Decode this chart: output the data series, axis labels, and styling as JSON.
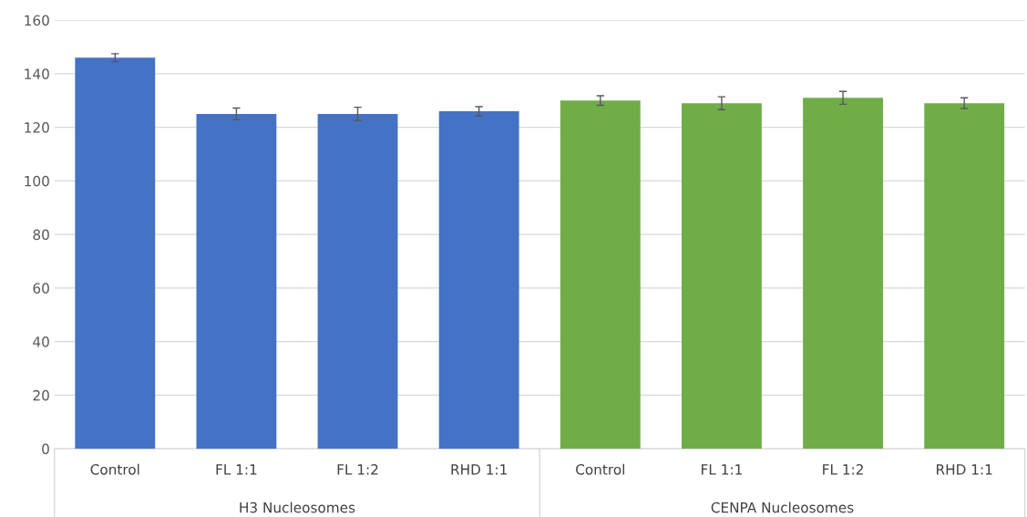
{
  "chart_data": {
    "type": "bar",
    "categories": [
      "Control",
      "FL 1:1",
      "FL 1:2",
      "RHD 1:1",
      "Control",
      "FL 1:1",
      "FL 1:2",
      "RHD 1:1"
    ],
    "values": [
      146,
      125,
      125,
      126,
      130,
      129,
      131,
      129
    ],
    "errors": [
      1.5,
      2.2,
      2.5,
      1.7,
      1.8,
      2.4,
      2.4,
      2
    ],
    "colors": [
      "#4472c4",
      "#4472c4",
      "#4472c4",
      "#4472c4",
      "#70ad47",
      "#70ad47",
      "#70ad47",
      "#70ad47"
    ],
    "ylim": [
      0,
      160
    ],
    "yticks": [
      0,
      20,
      40,
      60,
      80,
      100,
      120,
      140,
      160
    ],
    "grid": "y",
    "annotations": [
      "H3 Nucleosomes",
      "CENPA Nucleosomes"
    ]
  }
}
